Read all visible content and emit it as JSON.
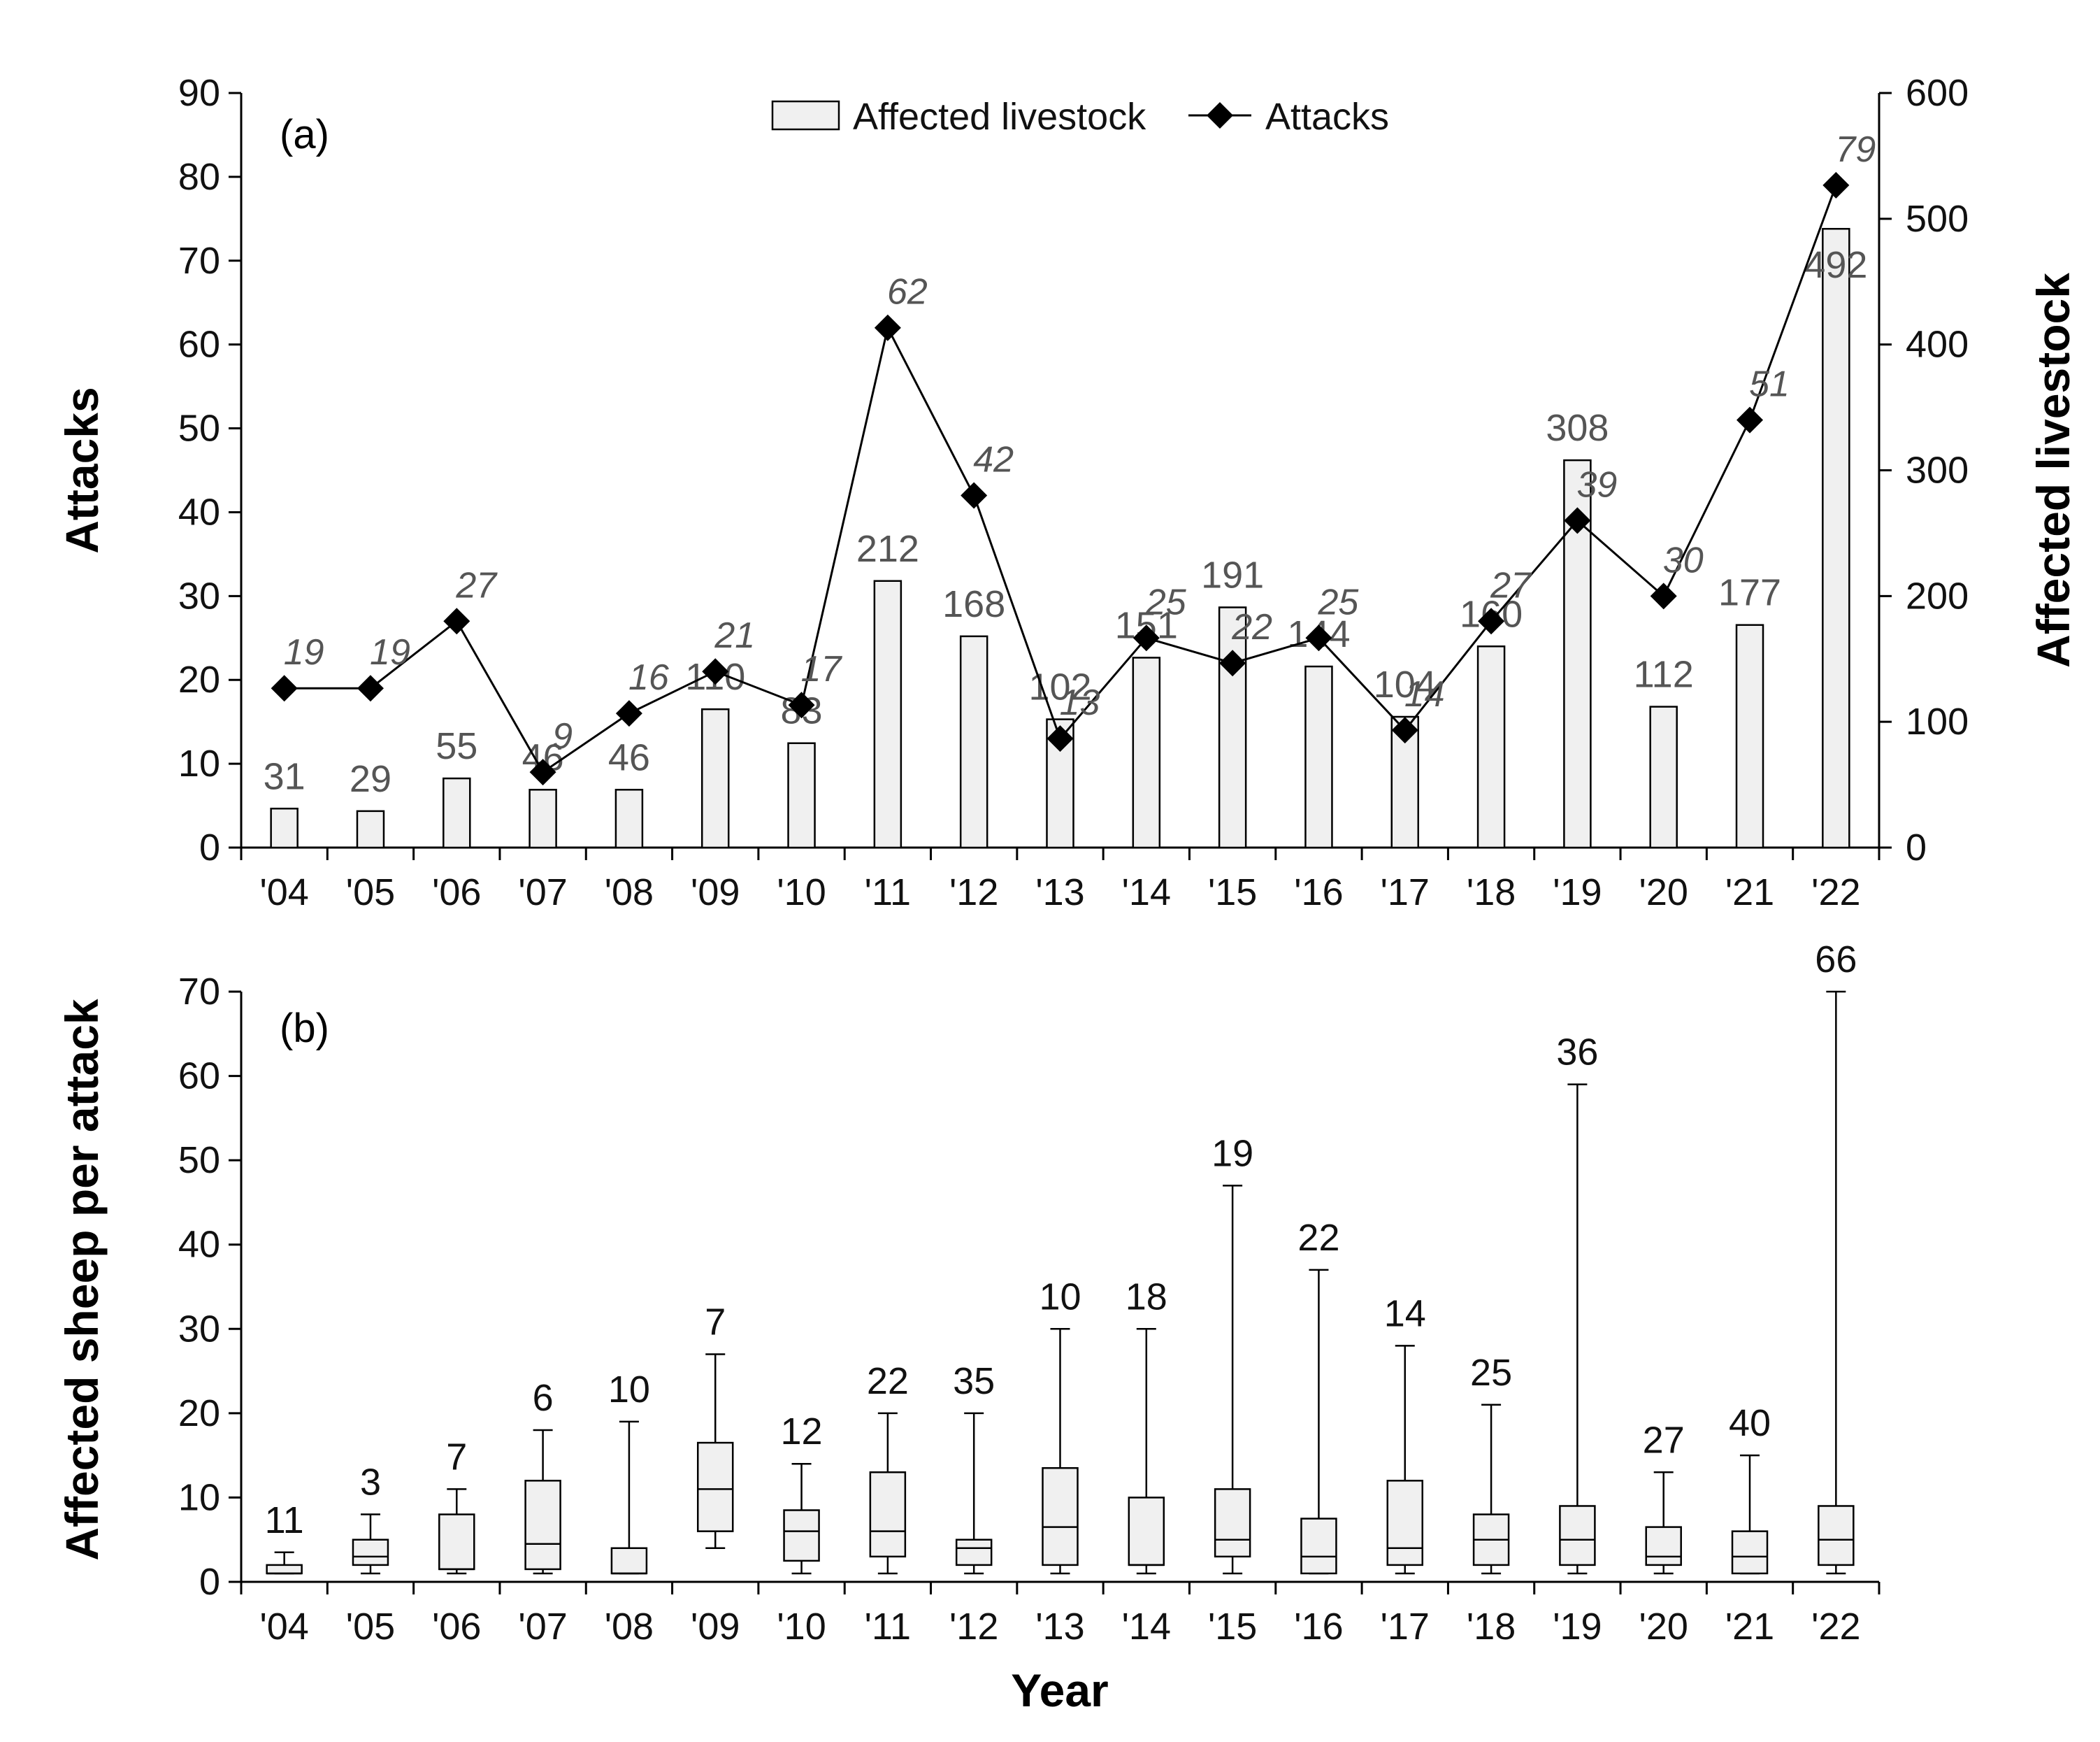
{
  "chart_data": [
    {
      "type": "bar+line",
      "panel_label": "(a)",
      "categories": [
        "'04",
        "'05",
        "'06",
        "'07",
        "'08",
        "'09",
        "'10",
        "'11",
        "'12",
        "'13",
        "'14",
        "'15",
        "'16",
        "'17",
        "'18",
        "'19",
        "'20",
        "'21",
        "'22"
      ],
      "series": [
        {
          "name": "Affected livestock",
          "kind": "bar",
          "axis": "right",
          "values": [
            31,
            29,
            55,
            46,
            46,
            110,
            83,
            212,
            168,
            102,
            151,
            191,
            144,
            104,
            160,
            308,
            112,
            177,
            492
          ]
        },
        {
          "name": "Attacks",
          "kind": "line",
          "axis": "left",
          "values": [
            19,
            19,
            27,
            9,
            16,
            21,
            17,
            62,
            42,
            13,
            25,
            22,
            25,
            14,
            27,
            39,
            30,
            51,
            79
          ]
        }
      ],
      "ylabel_left": "Attacks",
      "ylabel_right": "Affected livestock",
      "ylim_left": [
        0,
        90
      ],
      "ylim_right": [
        0,
        600
      ],
      "yticks_left": [
        0,
        10,
        20,
        30,
        40,
        50,
        60,
        70,
        80,
        90
      ],
      "yticks_right": [
        0,
        100,
        200,
        300,
        400,
        500,
        600
      ],
      "legend": [
        "Affected livestock",
        "Attacks"
      ],
      "legend_position": "top-center"
    },
    {
      "type": "box",
      "panel_label": "(b)",
      "categories": [
        "'04",
        "'05",
        "'06",
        "'07",
        "'08",
        "'09",
        "'10",
        "'11",
        "'12",
        "'13",
        "'14",
        "'15",
        "'16",
        "'17",
        "'18",
        "'19",
        "'20",
        "'21",
        "'22"
      ],
      "boxes": [
        {
          "min": 1,
          "q1": 1,
          "median": 1,
          "q3": 2,
          "max": 3.5
        },
        {
          "min": 1,
          "q1": 2,
          "median": 3,
          "q3": 5,
          "max": 8
        },
        {
          "min": 1,
          "q1": 1.5,
          "median": 1.5,
          "q3": 8,
          "max": 11
        },
        {
          "min": 1,
          "q1": 1.5,
          "median": 4.5,
          "q3": 12,
          "max": 18
        },
        {
          "min": 1,
          "q1": 1,
          "median": 1,
          "q3": 4,
          "max": 19
        },
        {
          "min": 4,
          "q1": 6,
          "median": 11,
          "q3": 16.5,
          "max": 27
        },
        {
          "min": 1,
          "q1": 2.5,
          "median": 6,
          "q3": 8.5,
          "max": 14
        },
        {
          "min": 1,
          "q1": 3,
          "median": 6,
          "q3": 13,
          "max": 20
        },
        {
          "min": 1,
          "q1": 2,
          "median": 4,
          "q3": 5,
          "max": 20
        },
        {
          "min": 1,
          "q1": 2,
          "median": 6.5,
          "q3": 13.5,
          "max": 30
        },
        {
          "min": 1,
          "q1": 2,
          "median": 2,
          "q3": 10,
          "max": 30
        },
        {
          "min": 1,
          "q1": 3,
          "median": 5,
          "q3": 11,
          "max": 47
        },
        {
          "min": 1,
          "q1": 1,
          "median": 3,
          "q3": 7.5,
          "max": 37
        },
        {
          "min": 1,
          "q1": 2,
          "median": 4,
          "q3": 12,
          "max": 28
        },
        {
          "min": 1,
          "q1": 2,
          "median": 5,
          "q3": 8,
          "max": 21
        },
        {
          "min": 1,
          "q1": 2,
          "median": 5,
          "q3": 9,
          "max": 59
        },
        {
          "min": 1,
          "q1": 2,
          "median": 3,
          "q3": 6.5,
          "max": 13
        },
        {
          "min": 1,
          "q1": 1,
          "median": 3,
          "q3": 6,
          "max": 15
        },
        {
          "min": 1,
          "q1": 2,
          "median": 5,
          "q3": 9,
          "max": 70
        }
      ],
      "annotations": [
        11,
        3,
        7,
        6,
        10,
        7,
        12,
        22,
        35,
        10,
        18,
        19,
        22,
        14,
        25,
        36,
        27,
        40,
        66
      ],
      "ylabel": "Affected sheep per attack",
      "xlabel": "Year",
      "ylim": [
        0,
        70
      ],
      "yticks": [
        0,
        10,
        20,
        30,
        40,
        50,
        60,
        70
      ]
    }
  ]
}
